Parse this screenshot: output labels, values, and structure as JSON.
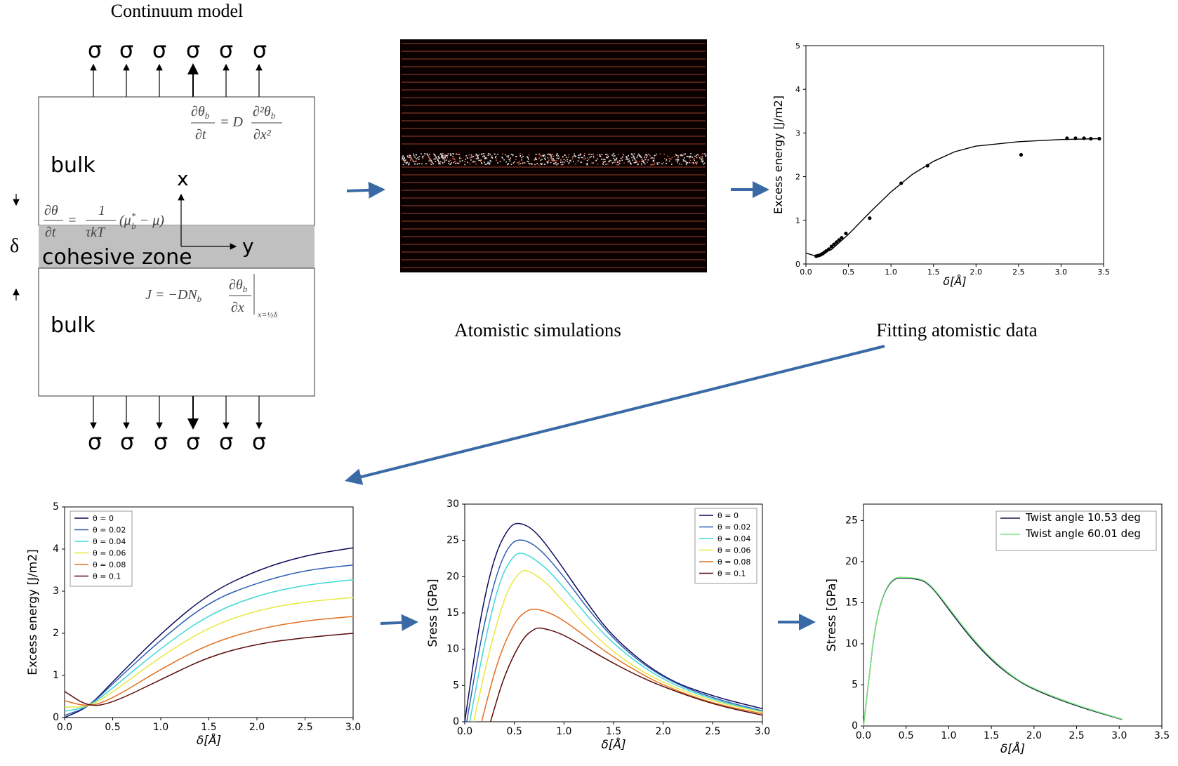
{
  "continuum": {
    "title": "Continuum model",
    "sigma": "σ",
    "bulk_top": "bulk",
    "bulk_bottom": "bulk",
    "cohesive": "cohesive zone",
    "delta": "δ",
    "axis_x": "x",
    "axis_y": "y",
    "eq_diffusion": "∂θ_b/∂t = D ∂²θ_b/∂x²",
    "eq_rate": "∂θ/∂t = 1/(τkT) (μ*_b − μ)",
    "eq_flux": "J = −DN_b ∂θ_b/∂x |_{x=½δ}"
  },
  "captions": {
    "atomistic": "Atomistic simulations",
    "fitting": "Fitting atomistic data"
  },
  "colors": {
    "arrow": "#3a6aa5",
    "theta_0": "#0a0a5a",
    "theta_002": "#2f5fb3",
    "theta_004": "#3fd8d8",
    "theta_006": "#e8e840",
    "theta_008": "#e07020",
    "theta_01": "#5a0a0a",
    "twist_10": "#1a1a4a",
    "twist_60": "#7be87b"
  },
  "chart_data": [
    {
      "type": "scatter",
      "ylabel": "Excess energy [J/m2]",
      "xlabel": "δ[Å]",
      "xlim": [
        0,
        3.5
      ],
      "ylim": [
        0,
        5
      ],
      "xticks": [
        "0.0",
        "0.5",
        "1.0",
        "1.5",
        "2.0",
        "2.5",
        "3.0",
        "3.5"
      ],
      "yticks": [
        "0",
        "1",
        "2",
        "3",
        "4",
        "5"
      ],
      "points": [
        [
          0.12,
          0.18
        ],
        [
          0.14,
          0.19
        ],
        [
          0.16,
          0.2
        ],
        [
          0.18,
          0.22
        ],
        [
          0.2,
          0.24
        ],
        [
          0.22,
          0.27
        ],
        [
          0.24,
          0.3
        ],
        [
          0.27,
          0.34
        ],
        [
          0.3,
          0.4
        ],
        [
          0.33,
          0.45
        ],
        [
          0.36,
          0.5
        ],
        [
          0.39,
          0.55
        ],
        [
          0.42,
          0.6
        ],
        [
          0.47,
          0.7
        ],
        [
          0.75,
          1.05
        ],
        [
          1.12,
          1.85
        ],
        [
          1.43,
          2.25
        ],
        [
          2.53,
          2.5
        ],
        [
          3.07,
          2.88
        ],
        [
          3.17,
          2.88
        ],
        [
          3.27,
          2.88
        ],
        [
          3.35,
          2.87
        ],
        [
          3.45,
          2.87
        ]
      ],
      "fit": [
        [
          0,
          0.25
        ],
        [
          0.12,
          0.18
        ],
        [
          0.3,
          0.33
        ],
        [
          0.5,
          0.68
        ],
        [
          0.75,
          1.18
        ],
        [
          1.0,
          1.65
        ],
        [
          1.25,
          2.05
        ],
        [
          1.5,
          2.35
        ],
        [
          1.75,
          2.57
        ],
        [
          2.0,
          2.7
        ],
        [
          2.5,
          2.8
        ],
        [
          3.0,
          2.85
        ],
        [
          3.45,
          2.87
        ]
      ]
    },
    {
      "type": "line",
      "ylabel": "Excess energy [J/m2]",
      "xlabel": "δ[Å]",
      "xlim": [
        0,
        3.0
      ],
      "ylim": [
        0,
        5
      ],
      "xticks": [
        "0.0",
        "0.5",
        "1.0",
        "1.5",
        "2.0",
        "2.5",
        "3.0"
      ],
      "yticks": [
        "0",
        "1",
        "2",
        "3",
        "4",
        "5"
      ],
      "legend": "top-left",
      "series": [
        {
          "name": "θ = 0",
          "points": [
            [
              0,
              0
            ],
            [
              0.25,
              0.25
            ],
            [
              0.5,
              0.85
            ],
            [
              1.0,
              2.0
            ],
            [
              1.5,
              2.95
            ],
            [
              2.0,
              3.5
            ],
            [
              2.5,
              3.85
            ],
            [
              3.0,
              4.03
            ]
          ]
        },
        {
          "name": "θ = 0.02",
          "points": [
            [
              0,
              0.05
            ],
            [
              0.25,
              0.25
            ],
            [
              0.5,
              0.8
            ],
            [
              1.0,
              1.85
            ],
            [
              1.5,
              2.75
            ],
            [
              2.0,
              3.2
            ],
            [
              2.5,
              3.5
            ],
            [
              3.0,
              3.62
            ]
          ]
        },
        {
          "name": "θ = 0.04",
          "points": [
            [
              0,
              0.15
            ],
            [
              0.25,
              0.25
            ],
            [
              0.5,
              0.7
            ],
            [
              1.0,
              1.65
            ],
            [
              1.5,
              2.45
            ],
            [
              2.0,
              2.9
            ],
            [
              2.5,
              3.15
            ],
            [
              3.0,
              3.27
            ]
          ]
        },
        {
          "name": "θ = 0.06",
          "points": [
            [
              0,
              0.25
            ],
            [
              0.25,
              0.25
            ],
            [
              0.5,
              0.6
            ],
            [
              1.0,
              1.45
            ],
            [
              1.5,
              2.15
            ],
            [
              2.0,
              2.55
            ],
            [
              2.5,
              2.75
            ],
            [
              3.0,
              2.85
            ]
          ]
        },
        {
          "name": "θ = 0.08",
          "points": [
            [
              0,
              0.4
            ],
            [
              0.25,
              0.25
            ],
            [
              0.5,
              0.45
            ],
            [
              1.0,
              1.15
            ],
            [
              1.5,
              1.75
            ],
            [
              2.0,
              2.1
            ],
            [
              2.5,
              2.3
            ],
            [
              3.0,
              2.4
            ]
          ]
        },
        {
          "name": "θ = 0.1",
          "points": [
            [
              0,
              0.62
            ],
            [
              0.25,
              0.25
            ],
            [
              0.5,
              0.35
            ],
            [
              1.0,
              0.9
            ],
            [
              1.5,
              1.45
            ],
            [
              2.0,
              1.75
            ],
            [
              2.5,
              1.9
            ],
            [
              3.0,
              2.0
            ]
          ]
        }
      ]
    },
    {
      "type": "line",
      "ylabel": "Sress [GPa]",
      "xlabel": "δ[Å]",
      "xlim": [
        0,
        3.0
      ],
      "ylim": [
        0,
        30
      ],
      "xticks": [
        "0.0",
        "0.5",
        "1.0",
        "1.5",
        "2.0",
        "2.5",
        "3.0"
      ],
      "yticks": [
        "0",
        "5",
        "10",
        "15",
        "20",
        "25",
        "30"
      ],
      "legend": "top-right",
      "series": [
        {
          "name": "θ = 0",
          "points": [
            [
              0,
              0
            ],
            [
              0.15,
              14
            ],
            [
              0.3,
              23
            ],
            [
              0.45,
              27
            ],
            [
              0.55,
              27.5
            ],
            [
              0.7,
              26.5
            ],
            [
              0.9,
              23
            ],
            [
              1.2,
              17
            ],
            [
              1.5,
              11.5
            ],
            [
              2.0,
              6
            ],
            [
              2.5,
              3.5
            ],
            [
              3.0,
              1.8
            ]
          ]
        },
        {
          "name": "θ = 0.02",
          "points": [
            [
              0.02,
              0
            ],
            [
              0.17,
              12
            ],
            [
              0.32,
              20.5
            ],
            [
              0.45,
              24.5
            ],
            [
              0.57,
              25.3
            ],
            [
              0.75,
              24
            ],
            [
              1.0,
              20
            ],
            [
              1.3,
              14.5
            ],
            [
              1.6,
              10
            ],
            [
              2.0,
              6
            ],
            [
              2.5,
              3.2
            ],
            [
              3.0,
              1.5
            ]
          ]
        },
        {
          "name": "θ = 0.04",
          "points": [
            [
              0.05,
              0
            ],
            [
              0.2,
              11
            ],
            [
              0.35,
              19.5
            ],
            [
              0.48,
              22.8
            ],
            [
              0.58,
              23.5
            ],
            [
              0.8,
              21.5
            ],
            [
              1.0,
              18.5
            ],
            [
              1.3,
              13.5
            ],
            [
              1.6,
              9.5
            ],
            [
              2.0,
              5.7
            ],
            [
              2.5,
              3
            ],
            [
              3.0,
              1.4
            ]
          ]
        },
        {
          "name": "θ = 0.06",
          "points": [
            [
              0.09,
              0
            ],
            [
              0.25,
              10
            ],
            [
              0.42,
              18
            ],
            [
              0.55,
              20.6
            ],
            [
              0.62,
              21
            ],
            [
              0.8,
              19.5
            ],
            [
              1.0,
              16.5
            ],
            [
              1.3,
              12
            ],
            [
              1.6,
              8.5
            ],
            [
              2.0,
              5.3
            ],
            [
              2.5,
              2.8
            ],
            [
              3.0,
              1.3
            ]
          ]
        },
        {
          "name": "θ = 0.08",
          "points": [
            [
              0.17,
              0
            ],
            [
              0.33,
              8.5
            ],
            [
              0.5,
              13.8
            ],
            [
              0.63,
              15.4
            ],
            [
              0.72,
              15.6
            ],
            [
              0.9,
              14.8
            ],
            [
              1.1,
              13
            ],
            [
              1.4,
              9.8
            ],
            [
              1.7,
              7.2
            ],
            [
              2.0,
              5
            ],
            [
              2.5,
              2.5
            ],
            [
              3.0,
              1.1
            ]
          ]
        },
        {
          "name": "θ = 0.1",
          "points": [
            [
              0.26,
              0
            ],
            [
              0.4,
              6.5
            ],
            [
              0.58,
              11.5
            ],
            [
              0.7,
              12.8
            ],
            [
              0.76,
              13
            ],
            [
              0.95,
              12.3
            ],
            [
              1.15,
              10.8
            ],
            [
              1.4,
              8.8
            ],
            [
              1.7,
              6.6
            ],
            [
              2.0,
              4.8
            ],
            [
              2.5,
              2.4
            ],
            [
              3.0,
              0.9
            ]
          ]
        }
      ]
    },
    {
      "type": "line",
      "ylabel": "Stress [GPa]",
      "xlabel": "δ[Å]",
      "xlim": [
        0,
        3.5
      ],
      "ylim": [
        0,
        27
      ],
      "xticks": [
        "0.0",
        "0.5",
        "1.0",
        "1.5",
        "2.0",
        "2.5",
        "3.0",
        "3.5"
      ],
      "yticks": [
        "0",
        "5",
        "10",
        "15",
        "20",
        "25"
      ],
      "legend": "top-right",
      "series": [
        {
          "name": "Twist angle 10.53 deg",
          "points": [
            [
              0,
              0
            ],
            [
              0.2,
              18
            ],
            [
              0.65,
              18
            ],
            [
              0.8,
              17
            ],
            [
              1.0,
              14.2
            ],
            [
              1.25,
              10.8
            ],
            [
              1.5,
              8
            ],
            [
              1.75,
              5.9
            ],
            [
              2.0,
              4.4
            ],
            [
              2.5,
              2.4
            ],
            [
              3.03,
              0.8
            ]
          ]
        },
        {
          "name": "Twist angle 60.01 deg",
          "points": [
            [
              0,
              0
            ],
            [
              0.2,
              18.1
            ],
            [
              0.65,
              18.1
            ],
            [
              0.8,
              17.1
            ],
            [
              1.0,
              14.4
            ],
            [
              1.25,
              11
            ],
            [
              1.5,
              8.2
            ],
            [
              1.75,
              6
            ],
            [
              2.0,
              4.5
            ],
            [
              2.5,
              2.5
            ],
            [
              3.03,
              0.85
            ]
          ]
        }
      ]
    }
  ]
}
